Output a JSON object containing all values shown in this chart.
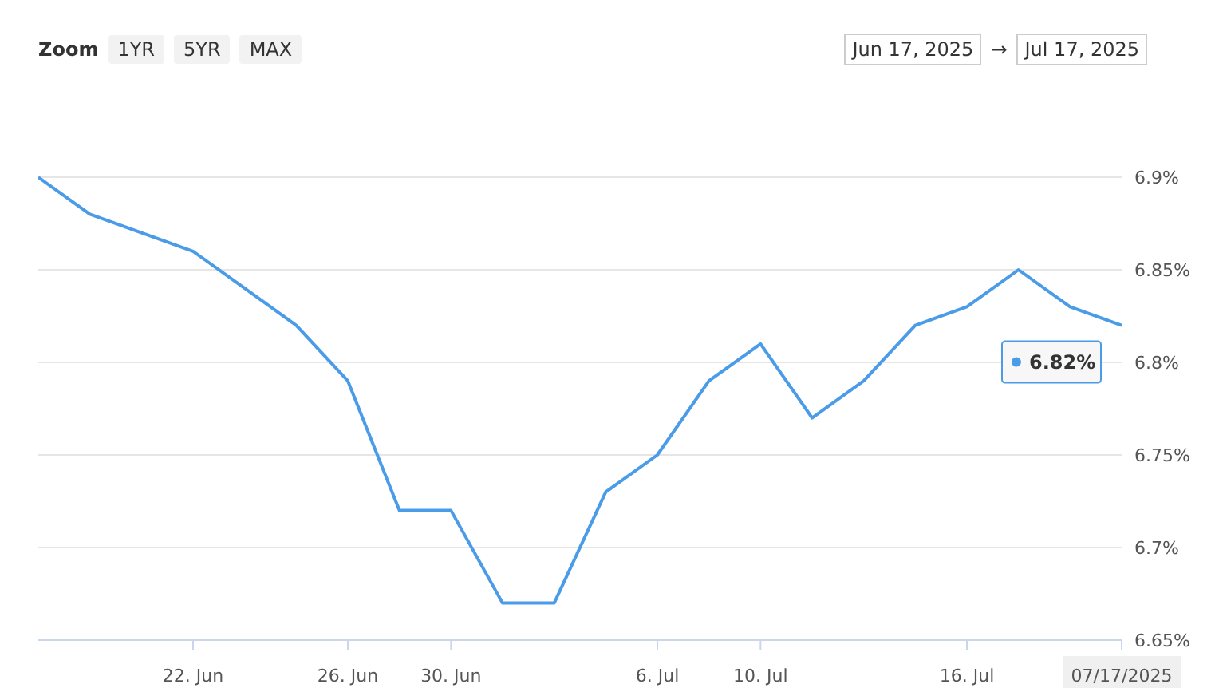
{
  "chart_data": {
    "type": "line",
    "categories": [
      null,
      null,
      null,
      "22. Jun",
      null,
      null,
      "26. Jun",
      null,
      "30. Jun",
      null,
      null,
      null,
      "6. Jul",
      null,
      "10. Jul",
      null,
      null,
      null,
      "16. Jul",
      null,
      null,
      "07/17/2025"
    ],
    "series": [
      {
        "color": "#4a9be8",
        "values": [
          6.9,
          6.88,
          6.87,
          6.86,
          6.84,
          6.82,
          6.79,
          6.72,
          6.72,
          6.67,
          6.67,
          6.73,
          6.75,
          6.79,
          6.81,
          6.77,
          6.79,
          6.82,
          6.83,
          6.85,
          6.83,
          6.82
        ]
      }
    ],
    "ylim": [
      6.65,
      6.95
    ],
    "yticks": [
      {
        "value": 6.65,
        "label": "6.65%"
      },
      {
        "value": 6.7,
        "label": "6.7%"
      },
      {
        "value": 6.75,
        "label": "6.75%"
      },
      {
        "value": 6.8,
        "label": "6.8%"
      },
      {
        "value": 6.85,
        "label": "6.85%"
      },
      {
        "value": 6.9,
        "label": "6.9%"
      }
    ],
    "grid": "y",
    "marker": "none",
    "line_style": "solid",
    "annotations": [
      "Zoom",
      "1YR",
      "5YR",
      "MAX",
      "Jun 17, 2025",
      "→",
      "Jul 17, 2025",
      {
        "text": "6.82%",
        "x": "07/17/2025",
        "y": 6.82
      }
    ]
  }
}
